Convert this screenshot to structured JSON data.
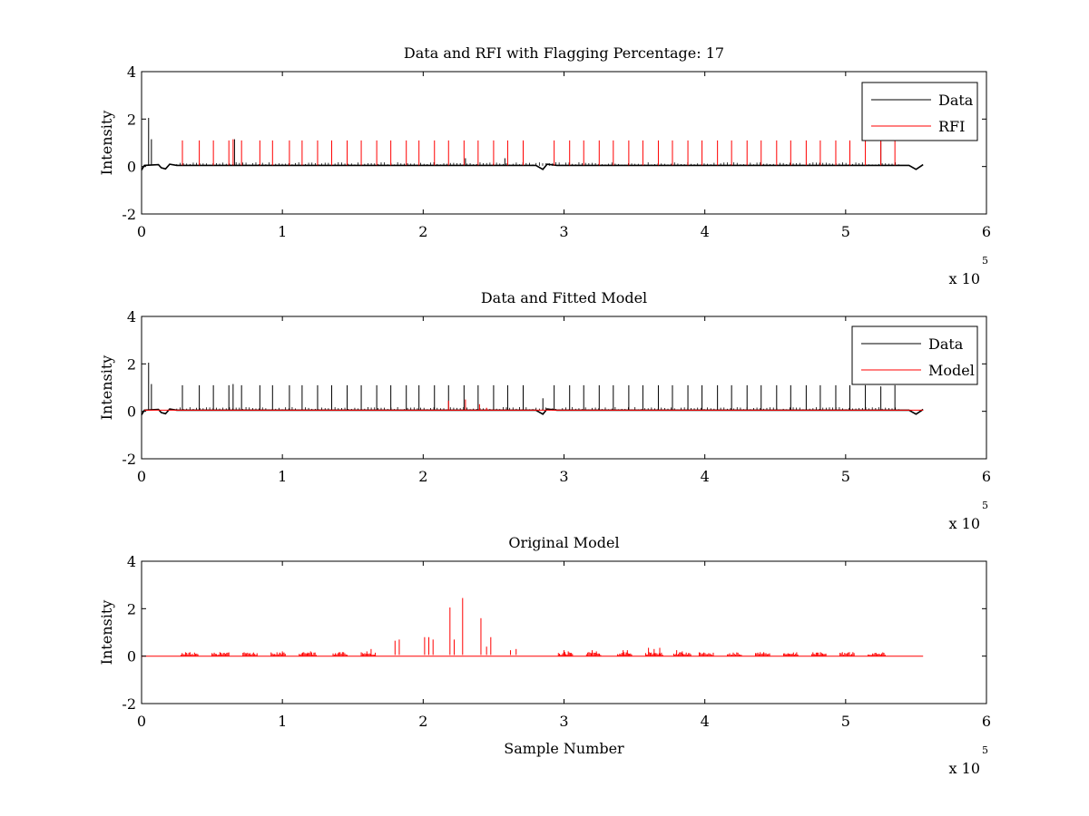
{
  "chart_data": [
    {
      "type": "line",
      "title": "Data and RFI with Flagging Percentage: 17",
      "xlabel": "",
      "ylabel": "Intensity",
      "xlim": [
        0,
        6
      ],
      "ylim": [
        -2,
        4
      ],
      "x_ticks": [
        "0",
        "1",
        "2",
        "3",
        "4",
        "5",
        "6"
      ],
      "y_ticks": [
        "-2",
        "0",
        "2",
        "4"
      ],
      "x_multiplier": {
        "base": "x 10",
        "exponent": "5"
      },
      "legend": {
        "position": "top-right",
        "entries": [
          "Data",
          "RFI"
        ]
      },
      "series": [
        {
          "name": "Data",
          "color": "#000000",
          "baseline": [
            [
              0,
              -0.15
            ],
            [
              0.02,
              0.05
            ],
            [
              0.12,
              0.08
            ],
            [
              0.14,
              -0.05
            ],
            [
              0.17,
              -0.1
            ],
            [
              0.2,
              0.1
            ],
            [
              0.25,
              0.05
            ],
            [
              2.8,
              0.05
            ],
            [
              2.85,
              -0.12
            ],
            [
              2.88,
              0.1
            ],
            [
              2.95,
              0.05
            ],
            [
              5.45,
              0.05
            ],
            [
              5.5,
              -0.12
            ],
            [
              5.55,
              0.08
            ]
          ],
          "spikes": [
            [
              0.05,
              2.05
            ],
            [
              0.07,
              1.15
            ],
            [
              0.66,
              1.15
            ],
            [
              2.3,
              0.35
            ],
            [
              2.58,
              0.35
            ],
            [
              5.25,
              1.05
            ]
          ]
        },
        {
          "name": "RFI",
          "color": "#ff0000",
          "spikes": [
            [
              0.29,
              1.1
            ],
            [
              0.41,
              1.1
            ],
            [
              0.51,
              1.1
            ],
            [
              0.62,
              1.1
            ],
            [
              0.65,
              1.15
            ],
            [
              0.71,
              1.1
            ],
            [
              0.84,
              1.1
            ],
            [
              0.93,
              1.1
            ],
            [
              1.05,
              1.1
            ],
            [
              1.14,
              1.1
            ],
            [
              1.25,
              1.1
            ],
            [
              1.35,
              1.1
            ],
            [
              1.46,
              1.1
            ],
            [
              1.56,
              1.1
            ],
            [
              1.67,
              1.1
            ],
            [
              1.77,
              1.1
            ],
            [
              1.88,
              1.1
            ],
            [
              1.97,
              1.1
            ],
            [
              2.08,
              1.1
            ],
            [
              2.18,
              1.1
            ],
            [
              2.29,
              1.1
            ],
            [
              2.39,
              1.1
            ],
            [
              2.5,
              1.1
            ],
            [
              2.6,
              1.1
            ],
            [
              2.71,
              1.1
            ],
            [
              2.93,
              1.1
            ],
            [
              3.04,
              1.1
            ],
            [
              3.14,
              1.1
            ],
            [
              3.25,
              1.1
            ],
            [
              3.35,
              1.1
            ],
            [
              3.46,
              1.1
            ],
            [
              3.56,
              1.1
            ],
            [
              3.67,
              1.1
            ],
            [
              3.77,
              1.1
            ],
            [
              3.88,
              1.1
            ],
            [
              3.98,
              1.1
            ],
            [
              4.09,
              1.1
            ],
            [
              4.19,
              1.1
            ],
            [
              4.3,
              1.1
            ],
            [
              4.4,
              1.1
            ],
            [
              4.51,
              1.1
            ],
            [
              4.61,
              1.1
            ],
            [
              4.72,
              1.1
            ],
            [
              4.82,
              1.1
            ],
            [
              4.93,
              1.1
            ],
            [
              5.03,
              1.1
            ],
            [
              5.14,
              1.1
            ],
            [
              5.25,
              1.1
            ],
            [
              5.35,
              1.1
            ]
          ]
        }
      ]
    },
    {
      "type": "line",
      "title": "Data and Fitted Model",
      "xlabel": "",
      "ylabel": "Intensity",
      "xlim": [
        0,
        6
      ],
      "ylim": [
        -2,
        4
      ],
      "x_ticks": [
        "0",
        "1",
        "2",
        "3",
        "4",
        "5",
        "6"
      ],
      "y_ticks": [
        "-2",
        "0",
        "2",
        "4"
      ],
      "x_multiplier": {
        "base": "x 10",
        "exponent": "5"
      },
      "legend": {
        "position": "top-right",
        "entries": [
          "Data",
          "Model"
        ]
      },
      "series": [
        {
          "name": "Data",
          "color": "#000000",
          "baseline": [
            [
              0,
              -0.15
            ],
            [
              0.02,
              0.05
            ],
            [
              0.12,
              0.08
            ],
            [
              0.14,
              -0.05
            ],
            [
              0.17,
              -0.1
            ],
            [
              0.2,
              0.1
            ],
            [
              0.25,
              0.05
            ],
            [
              2.8,
              0.05
            ],
            [
              2.85,
              -0.12
            ],
            [
              2.88,
              0.1
            ],
            [
              2.95,
              0.05
            ],
            [
              5.45,
              0.05
            ],
            [
              5.5,
              -0.12
            ],
            [
              5.55,
              0.08
            ]
          ],
          "spikes": [
            [
              0.05,
              2.05
            ],
            [
              0.07,
              1.15
            ],
            [
              0.29,
              1.1
            ],
            [
              0.41,
              1.1
            ],
            [
              0.51,
              1.1
            ],
            [
              0.62,
              1.1
            ],
            [
              0.65,
              1.15
            ],
            [
              0.71,
              1.1
            ],
            [
              0.84,
              1.1
            ],
            [
              0.93,
              1.1
            ],
            [
              1.05,
              1.1
            ],
            [
              1.14,
              1.1
            ],
            [
              1.25,
              1.1
            ],
            [
              1.35,
              1.1
            ],
            [
              1.46,
              1.1
            ],
            [
              1.56,
              1.1
            ],
            [
              1.67,
              1.1
            ],
            [
              1.77,
              1.1
            ],
            [
              1.88,
              1.1
            ],
            [
              1.97,
              1.1
            ],
            [
              2.08,
              1.1
            ],
            [
              2.18,
              1.1
            ],
            [
              2.29,
              1.1
            ],
            [
              2.39,
              1.1
            ],
            [
              2.5,
              1.1
            ],
            [
              2.6,
              1.1
            ],
            [
              2.71,
              1.1
            ],
            [
              2.85,
              0.55
            ],
            [
              2.93,
              1.1
            ],
            [
              3.04,
              1.1
            ],
            [
              3.14,
              1.1
            ],
            [
              3.25,
              1.1
            ],
            [
              3.35,
              1.1
            ],
            [
              3.46,
              1.1
            ],
            [
              3.56,
              1.1
            ],
            [
              3.67,
              1.1
            ],
            [
              3.77,
              1.1
            ],
            [
              3.88,
              1.1
            ],
            [
              3.98,
              1.1
            ],
            [
              4.09,
              1.1
            ],
            [
              4.19,
              1.1
            ],
            [
              4.3,
              1.1
            ],
            [
              4.4,
              1.1
            ],
            [
              4.51,
              1.1
            ],
            [
              4.61,
              1.1
            ],
            [
              4.72,
              1.1
            ],
            [
              4.82,
              1.1
            ],
            [
              4.93,
              1.1
            ],
            [
              5.03,
              1.1
            ],
            [
              5.14,
              1.1
            ],
            [
              5.25,
              1.05
            ],
            [
              5.35,
              1.1
            ]
          ]
        },
        {
          "name": "Model",
          "color": "#ff0000",
          "baseline": [
            [
              0.02,
              0.05
            ],
            [
              5.55,
              0.05
            ]
          ],
          "spikes": [
            [
              2.18,
              0.45
            ],
            [
              2.3,
              0.5
            ],
            [
              2.4,
              0.3
            ],
            [
              2.45,
              0.15
            ]
          ]
        }
      ]
    },
    {
      "type": "line",
      "title": "Original Model",
      "xlabel": "Sample Number",
      "ylabel": "Intensity",
      "xlim": [
        0,
        6
      ],
      "ylim": [
        -2,
        4
      ],
      "x_ticks": [
        "0",
        "1",
        "2",
        "3",
        "4",
        "5",
        "6"
      ],
      "y_ticks": [
        "-2",
        "0",
        "2",
        "4"
      ],
      "x_multiplier": {
        "base": "x 10",
        "exponent": "5"
      },
      "series": [
        {
          "name": "Model",
          "color": "#ff0000",
          "baseline": [
            [
              0,
              0
            ],
            [
              5.55,
              0
            ]
          ],
          "spikes": [
            [
              0.98,
              0.15
            ],
            [
              1.0,
              0.2
            ],
            [
              1.18,
              0.15
            ],
            [
              1.2,
              0.2
            ],
            [
              1.6,
              0.2
            ],
            [
              1.63,
              0.3
            ],
            [
              1.8,
              0.65
            ],
            [
              1.83,
              0.7
            ],
            [
              2.01,
              0.8
            ],
            [
              2.04,
              0.8
            ],
            [
              2.07,
              0.7
            ],
            [
              2.19,
              2.05
            ],
            [
              2.22,
              0.7
            ],
            [
              2.28,
              2.45
            ],
            [
              2.41,
              1.6
            ],
            [
              2.45,
              0.4
            ],
            [
              2.48,
              0.8
            ],
            [
              2.62,
              0.25
            ],
            [
              2.66,
              0.3
            ],
            [
              3.0,
              0.25
            ],
            [
              3.03,
              0.2
            ],
            [
              3.2,
              0.25
            ],
            [
              3.23,
              0.2
            ],
            [
              3.42,
              0.25
            ],
            [
              3.45,
              0.25
            ],
            [
              3.6,
              0.35
            ],
            [
              3.64,
              0.3
            ],
            [
              3.68,
              0.35
            ],
            [
              3.8,
              0.25
            ],
            [
              3.84,
              0.2
            ]
          ],
          "noise_regions": [
            [
              0.28,
              0.4
            ],
            [
              0.5,
              0.62
            ],
            [
              0.72,
              0.82
            ],
            [
              0.92,
              1.02
            ],
            [
              1.12,
              1.24
            ],
            [
              1.36,
              1.46
            ],
            [
              1.56,
              1.66
            ],
            [
              2.96,
              3.06
            ],
            [
              3.16,
              3.26
            ],
            [
              3.38,
              3.48
            ],
            [
              3.58,
              3.7
            ],
            [
              3.78,
              3.9
            ],
            [
              3.96,
              4.06
            ],
            [
              4.16,
              4.26
            ],
            [
              4.36,
              4.46
            ],
            [
              4.56,
              4.66
            ],
            [
              4.76,
              4.86
            ],
            [
              4.96,
              5.06
            ],
            [
              5.16,
              5.28
            ]
          ]
        }
      ]
    }
  ]
}
